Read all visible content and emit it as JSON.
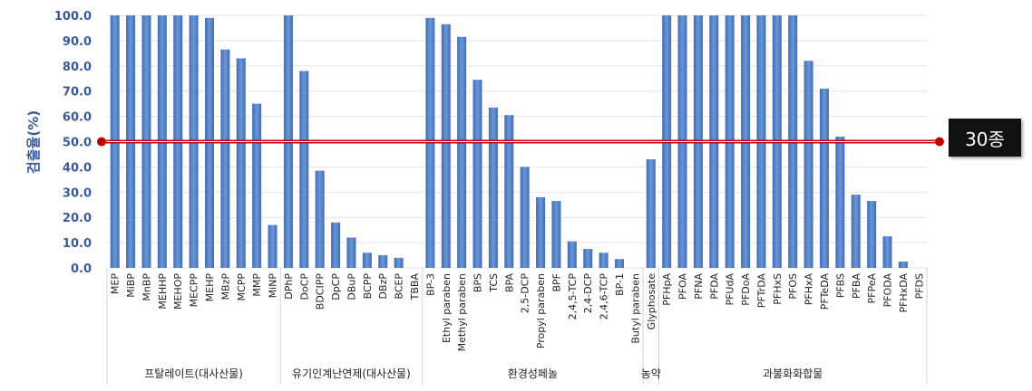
{
  "chart_data": {
    "type": "bar",
    "ylabel": "검출율(%)",
    "ylim": [
      0,
      100
    ],
    "yticks": [
      "0.0",
      "10.0",
      "20.0",
      "30.0",
      "40.0",
      "50.0",
      "60.0",
      "70.0",
      "80.0",
      "90.0",
      "100.0"
    ],
    "categories": [
      "MEP",
      "MiBP",
      "MnBP",
      "MEHHP",
      "MEHOP",
      "MECPP",
      "MEHP",
      "MBzP",
      "MCPP",
      "MMP",
      "MiNP",
      "DPhP",
      "DoCP",
      "BDCIPP",
      "DpCP",
      "DBuP",
      "BCPP",
      "DBzP",
      "BCEP",
      "TBBA",
      "BP-3",
      "Ethyl paraben",
      "Methyl paraben",
      "BPS",
      "TCS",
      "BPA",
      "2,5-DCP",
      "Propyl paraben",
      "BPF",
      "2,4,5-TCP",
      "2,4-DCP",
      "2,4,6-TCP",
      "BP-1",
      "Butyl paraben",
      "Glyphosate",
      "PFHpA",
      "PFOA",
      "PFNA",
      "PFDA",
      "PFUdA",
      "PFDoA",
      "PFTrDA",
      "PFHxS",
      "PFOS",
      "PFHxA",
      "PFTeDA",
      "PFBS",
      "PFBA",
      "PFPeA",
      "PFODA",
      "PFHxDA",
      "PFDS"
    ],
    "values": [
      100,
      100,
      100,
      100,
      100,
      100,
      99,
      86.5,
      83,
      65,
      17,
      100,
      78,
      38.5,
      18,
      12,
      6,
      5,
      4,
      0,
      99,
      96.5,
      91.5,
      74.5,
      63.5,
      60.5,
      40,
      28,
      26.5,
      10.5,
      7.5,
      6,
      3.5,
      0,
      43,
      100,
      100,
      100,
      100,
      100,
      100,
      100,
      100,
      100,
      82,
      71,
      52,
      29,
      26.5,
      12.5,
      2.5,
      0
    ],
    "groups": [
      {
        "label": "프탈레이트(대사산물)",
        "count": 11
      },
      {
        "label": "유기인계난연제(대사산물)",
        "count": 9
      },
      {
        "label": "환경성페놀",
        "count": 14
      },
      {
        "label": "농약",
        "count": 1
      },
      {
        "label": "과불화화합물",
        "count": 17
      }
    ],
    "reference_line": {
      "value": 50,
      "color": "#c00000",
      "label": "30종"
    },
    "bar_color": "#4f7fc4",
    "axis_label_color": "#3a5a96"
  }
}
